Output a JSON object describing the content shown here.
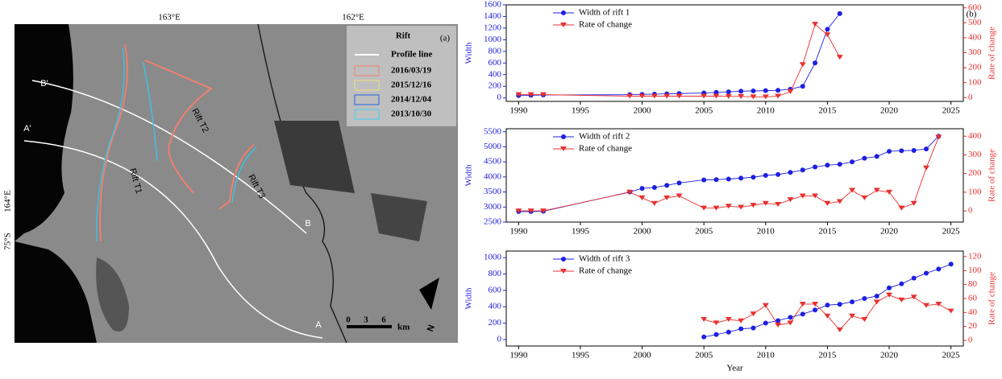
{
  "map": {
    "lon_labels": [
      "163°E",
      "162°E",
      "164°E"
    ],
    "lat_label": "75°S",
    "panel_label": "(a)",
    "legend": {
      "title": "Rift",
      "items": [
        "Profile line",
        "2016/03/19",
        "2015/12/16",
        "2014/12/04",
        "2013/10/30"
      ]
    },
    "profile_labels": [
      "B'",
      "A'",
      "B",
      "A"
    ],
    "rift_labels": [
      "Rift T1",
      "Rift T2",
      "Rift T3"
    ],
    "scale": {
      "ticks": [
        "0",
        "3",
        "6"
      ],
      "unit": "km"
    },
    "north": "N"
  },
  "panel_b_label": "(b)",
  "chart_data": [
    {
      "type": "line",
      "y_label": "Width",
      "y2_label": "Rate of change",
      "x": [
        1990,
        1991,
        1992,
        1999,
        2000,
        2001,
        2002,
        2003,
        2005,
        2006,
        2007,
        2008,
        2009,
        2010,
        2011,
        2012,
        2013,
        2014,
        2015,
        2016
      ],
      "xlim": [
        1989,
        2026
      ],
      "xticks": [
        1990,
        1995,
        2000,
        2005,
        2010,
        2015,
        2020,
        2025
      ],
      "ylim": [
        -60,
        1600
      ],
      "yticks": [
        0,
        200,
        400,
        600,
        800,
        1000,
        1200,
        1400,
        1600
      ],
      "y2lim": [
        -25,
        620
      ],
      "y2ticks": [
        0,
        100,
        200,
        300,
        400,
        500,
        600
      ],
      "series": [
        {
          "name": "Width of rift 1",
          "color": "#1f1fe0",
          "values": [
            40,
            45,
            50,
            55,
            60,
            65,
            70,
            75,
            85,
            95,
            105,
            115,
            120,
            125,
            130,
            150,
            200,
            600,
            1180,
            1450
          ]
        },
        {
          "name": "Rate of change",
          "color": "#e83030",
          "axis": "y2",
          "values": [
            20,
            20,
            20,
            10,
            10,
            10,
            10,
            10,
            10,
            10,
            8,
            8,
            5,
            5,
            10,
            40,
            220,
            490,
            420,
            270
          ]
        }
      ]
    },
    {
      "type": "line",
      "y_label": "Width",
      "y2_label": "Rate of change",
      "x": [
        1990,
        1991,
        1992,
        1999,
        2000,
        2001,
        2002,
        2003,
        2005,
        2006,
        2007,
        2008,
        2009,
        2010,
        2011,
        2012,
        2013,
        2014,
        2015,
        2016,
        2017,
        2018,
        2019,
        2020,
        2021,
        2022,
        2023,
        2024
      ],
      "xlim": [
        1989,
        2026
      ],
      "xticks": [
        1990,
        1995,
        2000,
        2005,
        2010,
        2015,
        2020,
        2025
      ],
      "ylim": [
        2500,
        5600
      ],
      "yticks": [
        2500,
        3000,
        3500,
        4000,
        4500,
        5000,
        5500
      ],
      "y2lim": [
        -60,
        440
      ],
      "y2ticks": [
        0,
        100,
        200,
        300,
        400
      ],
      "series": [
        {
          "name": "Width of rift 2",
          "color": "#1f1fe0",
          "values": [
            2850,
            2850,
            2860,
            3500,
            3620,
            3650,
            3720,
            3800,
            3900,
            3910,
            3930,
            3960,
            3990,
            4050,
            4080,
            4150,
            4230,
            4330,
            4390,
            4420,
            4500,
            4620,
            4680,
            4850,
            4870,
            4880,
            4930,
            5350
          ]
        },
        {
          "name": "Rate of change",
          "color": "#e83030",
          "axis": "y2",
          "values": [
            0,
            0,
            0,
            100,
            70,
            40,
            70,
            80,
            15,
            15,
            25,
            20,
            30,
            40,
            35,
            60,
            80,
            80,
            40,
            50,
            110,
            70,
            110,
            100,
            15,
            40,
            230,
            395
          ]
        }
      ]
    },
    {
      "type": "line",
      "y_label": "Width",
      "y2_label": "Rate of change",
      "x_label": "Year",
      "x": [
        2005,
        2006,
        2007,
        2008,
        2009,
        2010,
        2011,
        2012,
        2013,
        2014,
        2015,
        2016,
        2017,
        2018,
        2019,
        2020,
        2021,
        2022,
        2023,
        2024,
        2025
      ],
      "xlim": [
        1989,
        2026
      ],
      "xticks": [
        1990,
        1995,
        2000,
        2005,
        2010,
        2015,
        2020,
        2025
      ],
      "ylim": [
        -80,
        1080
      ],
      "yticks": [
        0,
        200,
        400,
        600,
        800,
        1000
      ],
      "y2lim": [
        -8,
        128
      ],
      "y2ticks": [
        0,
        20,
        40,
        60,
        80,
        100,
        120
      ],
      "series": [
        {
          "name": "Width of rift 3",
          "color": "#1f1fe0",
          "values": [
            30,
            60,
            90,
            130,
            140,
            200,
            230,
            270,
            310,
            360,
            420,
            430,
            460,
            500,
            530,
            630,
            680,
            750,
            810,
            860,
            920
          ]
        },
        {
          "name": "Rate of change",
          "color": "#e83030",
          "axis": "y2",
          "values": [
            30,
            25,
            30,
            28,
            38,
            50,
            22,
            25,
            52,
            52,
            35,
            15,
            35,
            30,
            55,
            65,
            58,
            62,
            50,
            52,
            42
          ]
        }
      ]
    }
  ]
}
